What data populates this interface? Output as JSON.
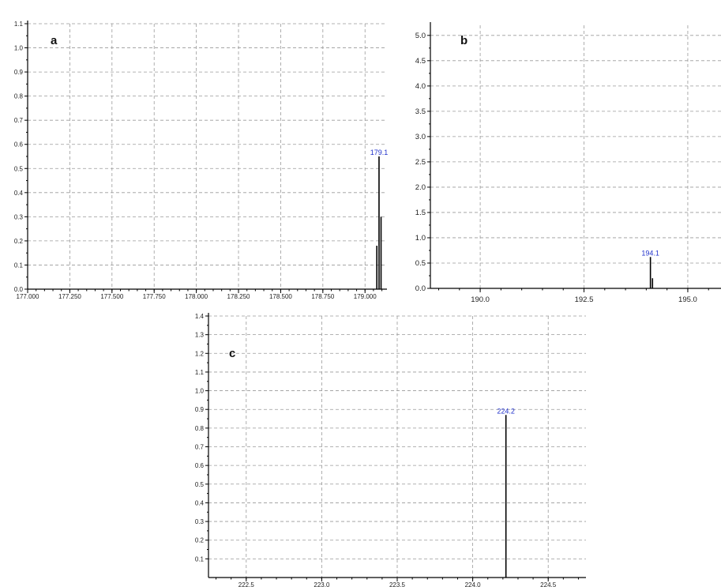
{
  "chart_data": [
    {
      "panel": "a",
      "type": "bar",
      "title": "",
      "xlabel": "",
      "ylabel": "",
      "panel_label": "a",
      "xlim": [
        177.0,
        179.13
      ],
      "ylim": [
        0.0,
        1.1
      ],
      "x_ticks": [
        "177.000",
        "177.250",
        "177.500",
        "177.750",
        "178.000",
        "178.250",
        "178.500",
        "178.750",
        "179.000"
      ],
      "y_ticks": [
        "0.0",
        "0.1",
        "0.2",
        "0.3",
        "0.4",
        "0.5",
        "0.6",
        "0.7",
        "0.8",
        "0.9",
        "1.0",
        "1.1"
      ],
      "grid": true,
      "peaks": [
        {
          "x": 179.083,
          "y": 0.55,
          "label": "179.1"
        },
        {
          "x": 179.095,
          "y": 0.3,
          "label": ""
        },
        {
          "x": 179.07,
          "y": 0.18,
          "label": ""
        }
      ]
    },
    {
      "panel": "b",
      "type": "bar",
      "title": "",
      "xlabel": "",
      "ylabel": "",
      "panel_label": "b",
      "xlim": [
        188.8,
        195.8
      ],
      "ylim": [
        0.0,
        5.2
      ],
      "x_ticks": [
        "190.0",
        "192.5",
        "195.0"
      ],
      "y_ticks": [
        "0.0",
        "0.5",
        "1.0",
        "1.5",
        "2.0",
        "2.5",
        "3.0",
        "3.5",
        "4.0",
        "4.5",
        "5.0"
      ],
      "grid": true,
      "peaks": [
        {
          "x": 194.1,
          "y": 0.62,
          "label": "194.1"
        },
        {
          "x": 194.15,
          "y": 0.2,
          "label": ""
        }
      ]
    },
    {
      "panel": "c",
      "type": "bar",
      "title": "",
      "xlabel": "",
      "ylabel": "",
      "panel_label": "c",
      "xlim": [
        222.25,
        224.75
      ],
      "ylim": [
        0.0,
        1.4
      ],
      "x_ticks": [
        "222.5",
        "223.0",
        "223.5",
        "224.0",
        "224.5"
      ],
      "y_ticks": [
        "0.1",
        "0.2",
        "0.3",
        "0.4",
        "0.5",
        "0.6",
        "0.7",
        "0.8",
        "0.9",
        "1.0",
        "1.1",
        "1.2",
        "1.3",
        "1.4"
      ],
      "grid": true,
      "peaks": [
        {
          "x": 224.22,
          "y": 0.87,
          "label": "224.2"
        }
      ]
    }
  ]
}
